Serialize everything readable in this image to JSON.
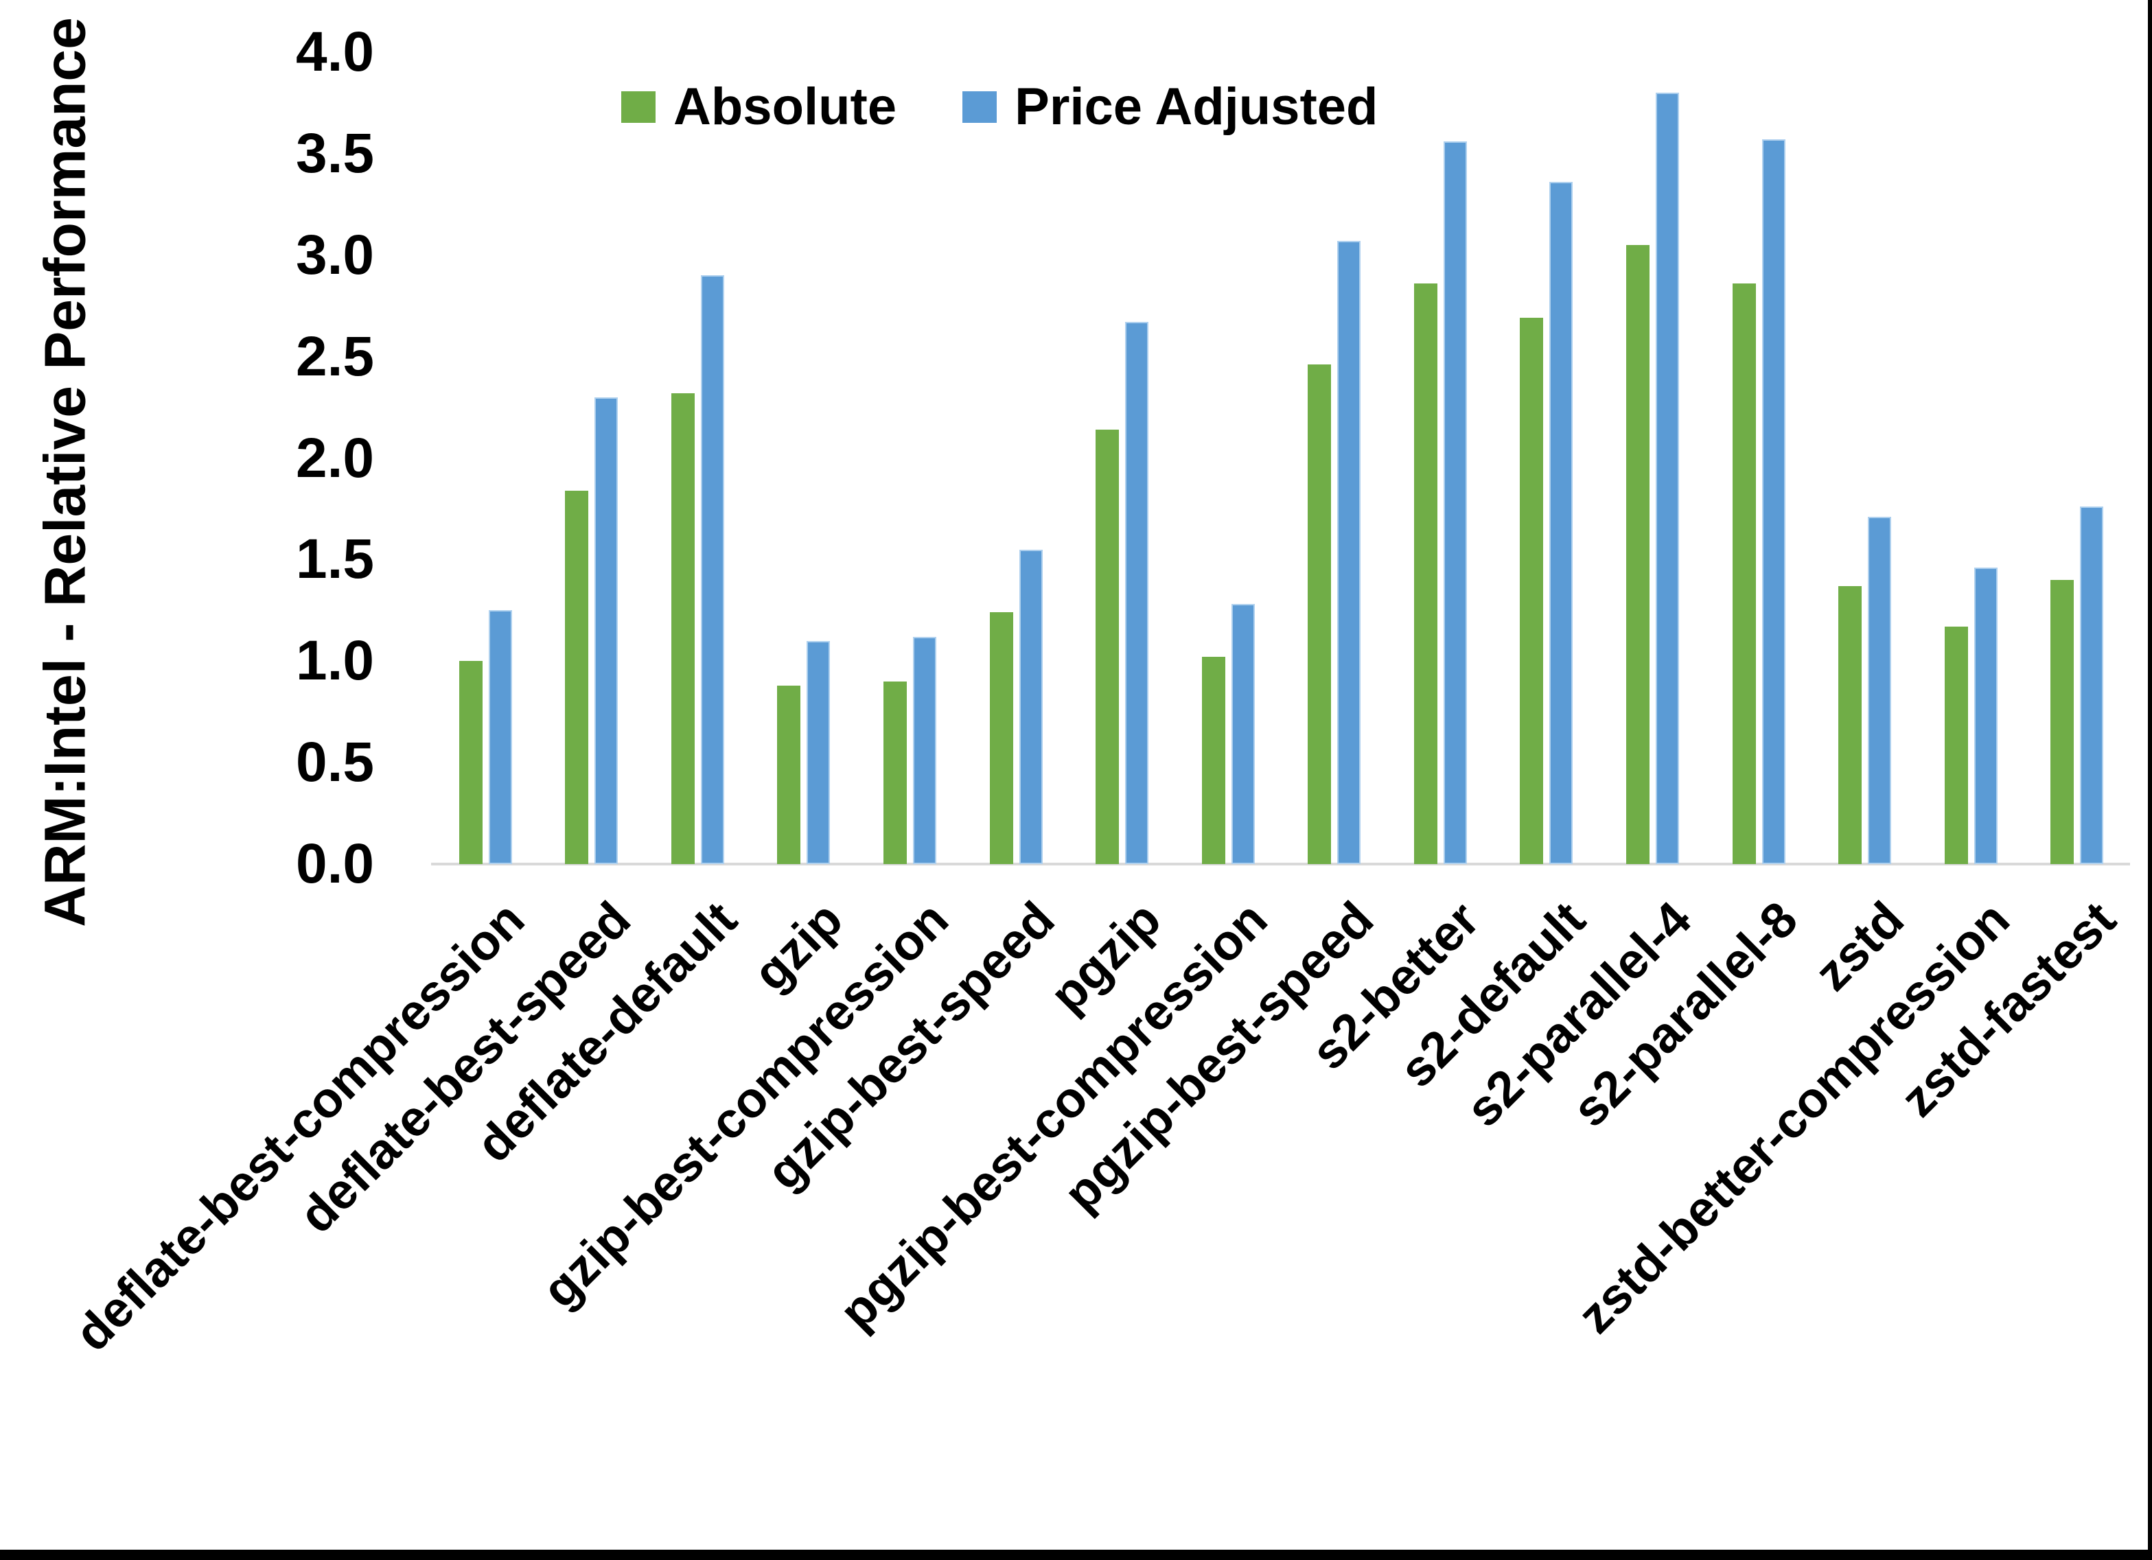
{
  "figure": {
    "background": "#FFFFFF",
    "bottom_border_color": "#000000",
    "right_border_color": "#000000"
  },
  "legend": {
    "position": "top-center",
    "items": [
      {
        "label": "Absolute",
        "color": "#70AD47"
      },
      {
        "label": "Price Adjusted",
        "color": "#5B9BD5"
      }
    ]
  },
  "chart_data": {
    "type": "bar",
    "title": "",
    "xlabel": "",
    "ylabel": "ARM:Intel - Relative Performance",
    "ylim": [
      0,
      4
    ],
    "ytick_labels": [
      "0.0",
      "0.5",
      "1.0",
      "1.5",
      "2.0",
      "2.5",
      "3.0",
      "3.5",
      "4.0"
    ],
    "grid": false,
    "axis_line_color": "#D9D9D9",
    "bar_colors": {
      "Absolute": "#70AD47",
      "Price Adjusted": "#5B9BD5"
    },
    "categories": [
      "deflate-best-compression",
      "deflate-best-speed",
      "deflate-default",
      "gzip",
      "gzip-best-compression",
      "gzip-best-speed",
      "pgzip",
      "pgzip-best-compression",
      "pgzip-best-speed",
      "s2-better",
      "s2-default",
      "s2-parallel-4",
      "s2-parallel-8",
      "zstd",
      "zstd-better-compression",
      "zstd-fastest"
    ],
    "series": [
      {
        "name": "Absolute",
        "color": "#70AD47",
        "values": [
          1.0,
          1.84,
          2.32,
          0.88,
          0.9,
          1.24,
          2.14,
          1.02,
          2.46,
          2.86,
          2.69,
          3.05,
          2.86,
          1.37,
          1.17,
          1.4
        ]
      },
      {
        "name": "Price Adjusted",
        "color": "#5B9BD5",
        "values": [
          1.25,
          2.3,
          2.9,
          1.1,
          1.12,
          1.55,
          2.67,
          1.28,
          3.07,
          3.56,
          3.36,
          3.8,
          3.57,
          1.71,
          1.46,
          1.76
        ]
      }
    ]
  }
}
